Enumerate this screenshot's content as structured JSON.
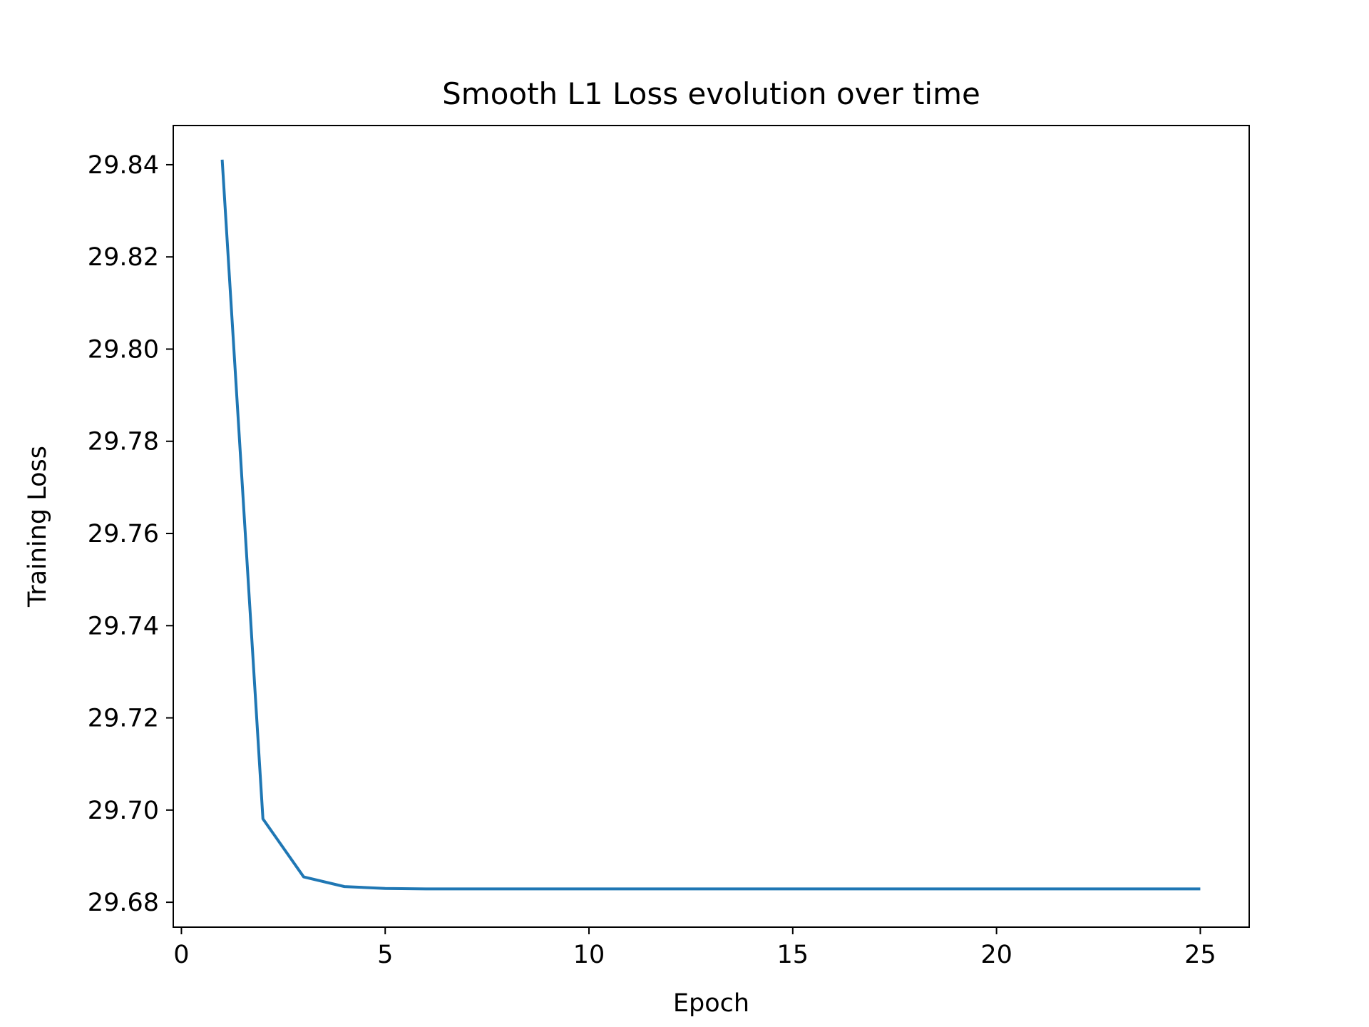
{
  "chart_data": {
    "type": "line",
    "title": "Smooth L1 Loss evolution over time",
    "xlabel": "Epoch",
    "ylabel": "Training Loss",
    "xlim": [
      -0.2,
      26.2
    ],
    "ylim": [
      29.6746,
      29.8485
    ],
    "xticks": [
      0,
      5,
      10,
      15,
      20,
      25
    ],
    "xtick_labels": [
      "0",
      "5",
      "10",
      "15",
      "20",
      "25"
    ],
    "yticks": [
      29.68,
      29.7,
      29.72,
      29.74,
      29.76,
      29.78,
      29.8,
      29.82,
      29.84
    ],
    "ytick_labels": [
      "29.68",
      "29.70",
      "29.72",
      "29.74",
      "29.76",
      "29.78",
      "29.80",
      "29.82",
      "29.84"
    ],
    "grid": false,
    "series": [
      {
        "color": "#1f77b4",
        "x": [
          1,
          2,
          3,
          4,
          5,
          6,
          7,
          8,
          9,
          10,
          11,
          12,
          13,
          14,
          15,
          16,
          17,
          18,
          19,
          20,
          21,
          22,
          23,
          24,
          25
        ],
        "y": [
          29.8411,
          29.6981,
          29.6855,
          29.6834,
          29.683,
          29.6829,
          29.6829,
          29.6829,
          29.6829,
          29.6829,
          29.6829,
          29.6829,
          29.6829,
          29.6829,
          29.6829,
          29.6829,
          29.6829,
          29.6829,
          29.6829,
          29.6829,
          29.6829,
          29.6829,
          29.6829,
          29.6829,
          29.6829
        ]
      }
    ]
  }
}
